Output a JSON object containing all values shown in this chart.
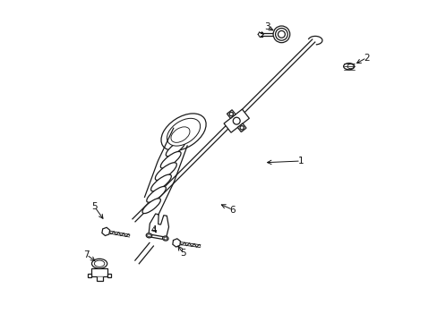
{
  "bg_color": "#ffffff",
  "line_color": "#1a1a1a",
  "label_color": "#111111",
  "lw": 0.9,
  "figsize": [
    4.89,
    3.6
  ],
  "dpi": 100,
  "parts_labels": {
    "1": [
      0.75,
      0.5,
      0.64,
      0.505
    ],
    "2": [
      0.96,
      0.175,
      0.915,
      0.195
    ],
    "3": [
      0.655,
      0.085,
      0.685,
      0.105
    ],
    "4": [
      0.295,
      0.71,
      0.31,
      0.73
    ],
    "5a": [
      0.115,
      0.64,
      0.145,
      0.685
    ],
    "5b": [
      0.385,
      0.785,
      0.365,
      0.755
    ],
    "6": [
      0.545,
      0.655,
      0.495,
      0.635
    ],
    "7": [
      0.09,
      0.79,
      0.125,
      0.815
    ]
  }
}
